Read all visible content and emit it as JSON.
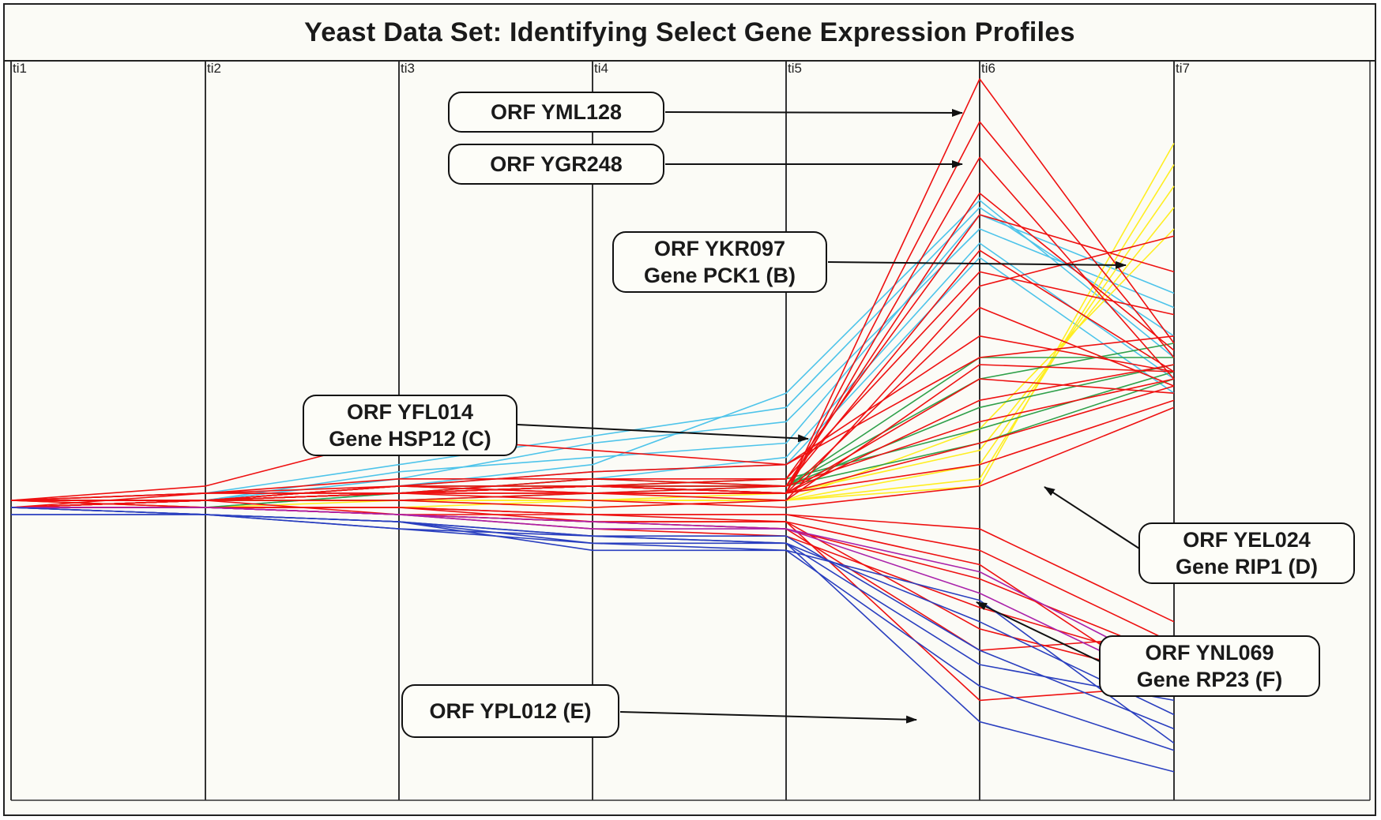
{
  "chart_data": {
    "type": "line",
    "title": "Yeast Data Set: Identifying Select Gene Expression Profiles",
    "categories": [
      "ti1",
      "ti2",
      "ti3",
      "ti4",
      "ti5",
      "ti6",
      "ti7"
    ],
    "xlabel": "",
    "ylabel": "",
    "ylim": [
      0,
      10
    ],
    "grid": "vertical axes only",
    "legend": "none",
    "series": [
      {
        "color": "#4ec4ea",
        "values": [
          4.1,
          4.2,
          4.6,
          5.0,
          5.4,
          8.2,
          6.4
        ]
      },
      {
        "color": "#4ec4ea",
        "values": [
          4.0,
          4.1,
          4.4,
          4.9,
          5.2,
          7.9,
          6.8
        ]
      },
      {
        "color": "#4ec4ea",
        "values": [
          4.1,
          4.1,
          4.3,
          4.6,
          5.6,
          8.3,
          6.1
        ]
      },
      {
        "color": "#4ec4ea",
        "values": [
          4.0,
          4.0,
          4.2,
          4.4,
          4.7,
          7.7,
          5.8
        ]
      },
      {
        "color": "#4ec4ea",
        "values": [
          4.1,
          4.1,
          4.5,
          4.7,
          4.9,
          8.1,
          7.0
        ]
      },
      {
        "color": "#4ec4ea",
        "values": [
          4.0,
          4.1,
          4.3,
          4.5,
          4.6,
          7.5,
          5.6
        ]
      },
      {
        "color": "#ffee22",
        "values": [
          4.1,
          4.1,
          4.1,
          4.1,
          4.1,
          4.3,
          9.1
        ]
      },
      {
        "color": "#ffee22",
        "values": [
          4.1,
          4.1,
          4.1,
          4.1,
          4.1,
          4.4,
          8.8
        ]
      },
      {
        "color": "#ffee22",
        "values": [
          4.0,
          4.0,
          4.1,
          4.0,
          4.1,
          4.6,
          8.5
        ]
      },
      {
        "color": "#ffee22",
        "values": [
          4.1,
          4.0,
          4.0,
          4.1,
          4.2,
          4.8,
          8.2
        ]
      },
      {
        "color": "#ffee22",
        "values": [
          4.0,
          4.1,
          4.1,
          4.1,
          4.1,
          5.1,
          7.9
        ]
      },
      {
        "color": "#2fa04a",
        "values": [
          4.1,
          4.1,
          4.2,
          4.3,
          4.3,
          5.4,
          6.0
        ]
      },
      {
        "color": "#2fa04a",
        "values": [
          4.0,
          4.1,
          4.2,
          4.4,
          4.3,
          5.8,
          6.3
        ]
      },
      {
        "color": "#2fa04a",
        "values": [
          4.1,
          4.1,
          4.3,
          4.3,
          4.4,
          5.1,
          5.9
        ]
      },
      {
        "color": "#2fa04a",
        "values": [
          4.0,
          4.0,
          4.2,
          4.3,
          4.3,
          6.1,
          6.1
        ]
      },
      {
        "color": "#2fa04a",
        "values": [
          4.1,
          4.1,
          4.1,
          4.2,
          4.3,
          4.9,
          5.8
        ]
      },
      {
        "color": "#ee1111",
        "values": [
          4.0,
          4.2,
          4.3,
          4.3,
          4.2,
          10.0,
          6.3
        ]
      },
      {
        "color": "#ee1111",
        "values": [
          4.1,
          4.2,
          4.2,
          4.2,
          4.2,
          9.4,
          6.1
        ]
      },
      {
        "color": "#ee1111",
        "values": [
          4.1,
          4.1,
          4.2,
          4.3,
          4.2,
          8.9,
          5.8
        ]
      },
      {
        "color": "#ee1111",
        "values": [
          4.0,
          4.1,
          4.3,
          4.2,
          4.3,
          8.4,
          6.2
        ]
      },
      {
        "color": "#ee1111",
        "values": [
          4.1,
          4.2,
          4.4,
          4.4,
          4.3,
          7.6,
          5.9
        ]
      },
      {
        "color": "#ee1111",
        "values": [
          4.1,
          4.1,
          4.2,
          4.2,
          4.1,
          7.1,
          7.8
        ]
      },
      {
        "color": "#ee1111",
        "values": [
          4.0,
          4.1,
          4.2,
          4.3,
          4.2,
          6.8,
          5.7
        ]
      },
      {
        "color": "#ee1111",
        "values": [
          4.1,
          4.3,
          5.0,
          4.8,
          4.6,
          6.4,
          5.9
        ]
      },
      {
        "color": "#ee1111",
        "values": [
          4.0,
          4.1,
          4.3,
          4.5,
          4.6,
          6.1,
          6.4
        ]
      },
      {
        "color": "#ee1111",
        "values": [
          4.1,
          4.1,
          4.2,
          4.3,
          4.2,
          5.8,
          5.6
        ]
      },
      {
        "color": "#ee1111",
        "values": [
          4.0,
          4.1,
          4.3,
          4.2,
          4.2,
          5.5,
          6.0
        ]
      },
      {
        "color": "#ee1111",
        "values": [
          4.1,
          4.1,
          4.2,
          4.3,
          4.3,
          5.2,
          5.8
        ]
      },
      {
        "color": "#ee1111",
        "values": [
          4.0,
          4.1,
          4.2,
          4.3,
          4.2,
          4.9,
          5.7
        ]
      },
      {
        "color": "#ee1111",
        "values": [
          4.1,
          4.1,
          4.1,
          4.2,
          4.2,
          4.6,
          5.5
        ]
      },
      {
        "color": "#ee1111",
        "values": [
          4.1,
          4.2,
          4.2,
          4.4,
          4.4,
          8.1,
          7.3
        ]
      },
      {
        "color": "#ee1111",
        "values": [
          4.0,
          4.1,
          4.2,
          4.3,
          4.4,
          7.3,
          6.7
        ]
      },
      {
        "color": "#ee1111",
        "values": [
          4.0,
          4.1,
          4.1,
          4.0,
          4.1,
          6.0,
          5.9
        ]
      },
      {
        "color": "#ee1111",
        "values": [
          4.1,
          4.1,
          4.2,
          4.1,
          4.0,
          4.3,
          5.4
        ]
      },
      {
        "color": "#ee1111",
        "values": [
          4.0,
          4.0,
          4.0,
          3.9,
          3.9,
          3.4,
          2.1
        ]
      },
      {
        "color": "#ee1111",
        "values": [
          4.1,
          4.0,
          3.9,
          3.8,
          3.7,
          3.0,
          1.9
        ]
      },
      {
        "color": "#ee1111",
        "values": [
          4.0,
          4.0,
          3.9,
          3.7,
          3.6,
          2.6,
          1.8
        ]
      },
      {
        "color": "#ee1111",
        "values": [
          4.0,
          4.0,
          4.0,
          3.8,
          3.8,
          2.3,
          1.6
        ]
      },
      {
        "color": "#ee1111",
        "values": [
          4.1,
          4.1,
          3.9,
          3.8,
          3.7,
          2.0,
          2.2
        ]
      },
      {
        "color": "#ee1111",
        "values": [
          4.0,
          4.0,
          3.9,
          3.9,
          3.8,
          1.3,
          1.5
        ]
      },
      {
        "color": "#ee1111",
        "values": [
          4.0,
          4.0,
          4.0,
          3.9,
          3.9,
          3.7,
          2.4
        ]
      },
      {
        "color": "#ee1111",
        "values": [
          4.1,
          4.0,
          3.9,
          3.8,
          3.8,
          3.2,
          1.4
        ]
      },
      {
        "color": "#aa22aa",
        "values": [
          4.0,
          4.0,
          3.9,
          3.8,
          3.7,
          3.1,
          1.7
        ]
      },
      {
        "color": "#aa22aa",
        "values": [
          4.0,
          4.0,
          3.9,
          3.7,
          3.7,
          2.8,
          1.5
        ]
      },
      {
        "color": "#2a3fbf",
        "values": [
          4.0,
          3.9,
          3.8,
          3.6,
          3.5,
          1.0,
          0.3
        ]
      },
      {
        "color": "#2a3fbf",
        "values": [
          4.0,
          3.9,
          3.8,
          3.5,
          3.4,
          1.5,
          0.6
        ]
      },
      {
        "color": "#2a3fbf",
        "values": [
          3.9,
          3.9,
          3.8,
          3.6,
          3.6,
          2.0,
          0.9
        ]
      },
      {
        "color": "#2a3fbf",
        "values": [
          4.0,
          3.9,
          3.7,
          3.5,
          3.5,
          2.4,
          1.1
        ]
      },
      {
        "color": "#2a3fbf",
        "values": [
          4.0,
          3.9,
          3.8,
          3.4,
          3.4,
          2.7,
          0.7
        ]
      },
      {
        "color": "#2a3fbf",
        "values": [
          3.9,
          3.9,
          3.7,
          3.6,
          3.5,
          1.8,
          1.3
        ]
      }
    ],
    "annotations": [
      {
        "text": [
          "ORF YML128"
        ],
        "target": "ti6"
      },
      {
        "text": [
          "ORF YGR248"
        ],
        "target": "ti6"
      },
      {
        "text": [
          "ORF YKR097",
          "Gene PCK1 (B)"
        ],
        "target": "ti7"
      },
      {
        "text": [
          "ORF YFL014",
          "Gene HSP12 (C)"
        ],
        "target": "ti5"
      },
      {
        "text": [
          "ORF YEL024",
          "Gene RIP1 (D)"
        ],
        "target": "ti7"
      },
      {
        "text": [
          "ORF YNL069",
          "Gene RP23 (F)"
        ],
        "target": "ti6"
      },
      {
        "text": [
          "ORF YPL012 (E)"
        ],
        "target": "ti6"
      }
    ]
  }
}
